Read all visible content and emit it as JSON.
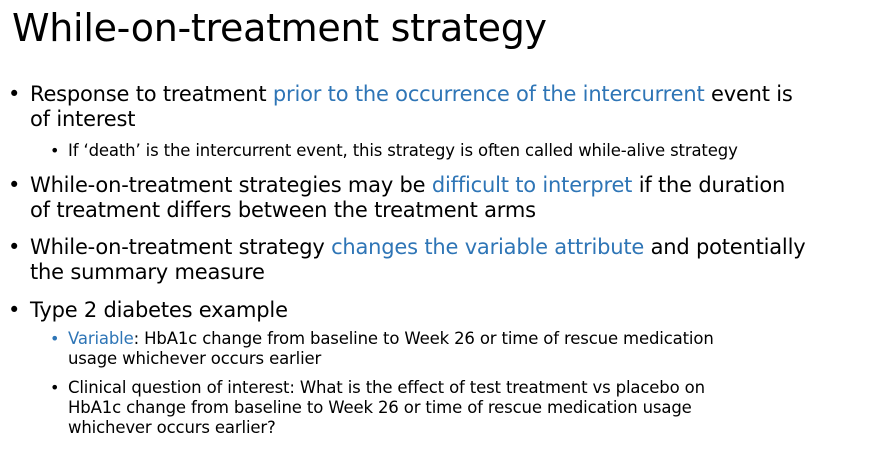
{
  "title": "While-on-treatment strategy",
  "accent_color": "#2e75b6",
  "bullets": {
    "b1": {
      "pre": "Response to treatment ",
      "hl": "prior to the occurrence of the intercurrent",
      "post1": " event is",
      "line2": "of interest",
      "sub1": "If ‘death’ is the intercurrent event, this strategy is often called while-alive strategy"
    },
    "b2": {
      "pre": "While-on-treatment strategies may be ",
      "hl": "difficult to interpret",
      "post1": " if the duration",
      "line2": "of treatment differs between the treatment arms"
    },
    "b3": {
      "pre": "While-on-treatment strategy ",
      "hl": "changes the variable attribute",
      "post1": " and potentially",
      "line2": "the summary measure"
    },
    "b4": {
      "text": "Type 2 diabetes example",
      "sub1_hl": "Variable",
      "sub1_line1": ": HbA1c change from baseline to Week 26 or time of rescue medication",
      "sub1_line2": "usage whichever occurs earlier",
      "sub2_line1": "Clinical question of interest: What is the effect of test treatment vs placebo on",
      "sub2_line2": "HbA1c change from baseline to Week 26 or time of rescue medication usage",
      "sub2_line3": "whichever occurs earlier?"
    }
  }
}
